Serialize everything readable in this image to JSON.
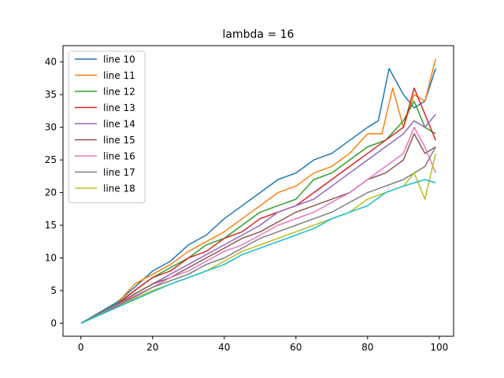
{
  "chart_data": {
    "type": "line",
    "title": "lambda = 16",
    "xlabel": "",
    "ylabel": "",
    "xlim": [
      -5,
      104
    ],
    "ylim": [
      -2,
      42.5
    ],
    "xticks": [
      0,
      20,
      40,
      60,
      80,
      100
    ],
    "yticks": [
      0,
      5,
      10,
      15,
      20,
      25,
      30,
      35,
      40
    ],
    "grid": false,
    "legend_position": "top-left",
    "series": [
      {
        "name": "line 10",
        "color": "#1f77b4",
        "points": [
          [
            0,
            0
          ],
          [
            10,
            3.2
          ],
          [
            15,
            5.5
          ],
          [
            20,
            8
          ],
          [
            25,
            9.5
          ],
          [
            30,
            12
          ],
          [
            35,
            13.5
          ],
          [
            40,
            16
          ],
          [
            45,
            18
          ],
          [
            50,
            20
          ],
          [
            55,
            22
          ],
          [
            60,
            23
          ],
          [
            65,
            25
          ],
          [
            70,
            26
          ],
          [
            75,
            28
          ],
          [
            80,
            30
          ],
          [
            83,
            31
          ],
          [
            86,
            39
          ],
          [
            90,
            35
          ],
          [
            93,
            33
          ],
          [
            96,
            34
          ],
          [
            99,
            39
          ]
        ]
      },
      {
        "name": "line 11",
        "color": "#ff7f0e",
        "points": [
          [
            0,
            0
          ],
          [
            10,
            3
          ],
          [
            15,
            6
          ],
          [
            20,
            7.5
          ],
          [
            25,
            9
          ],
          [
            30,
            11
          ],
          [
            35,
            12.5
          ],
          [
            40,
            14
          ],
          [
            45,
            16
          ],
          [
            50,
            18
          ],
          [
            55,
            20
          ],
          [
            60,
            21
          ],
          [
            65,
            23
          ],
          [
            70,
            24
          ],
          [
            75,
            26
          ],
          [
            80,
            29
          ],
          [
            84,
            29
          ],
          [
            87,
            36
          ],
          [
            90,
            30
          ],
          [
            93,
            35
          ],
          [
            96,
            34
          ],
          [
            99,
            40.5
          ]
        ]
      },
      {
        "name": "line 12",
        "color": "#2ca02c",
        "points": [
          [
            0,
            0
          ],
          [
            10,
            3
          ],
          [
            15,
            5
          ],
          [
            20,
            7
          ],
          [
            25,
            8.5
          ],
          [
            30,
            10
          ],
          [
            35,
            12
          ],
          [
            40,
            13
          ],
          [
            45,
            15
          ],
          [
            50,
            17
          ],
          [
            55,
            18
          ],
          [
            60,
            19
          ],
          [
            65,
            22
          ],
          [
            70,
            23
          ],
          [
            75,
            25
          ],
          [
            80,
            27
          ],
          [
            85,
            28
          ],
          [
            90,
            31
          ],
          [
            93,
            34
          ],
          [
            96,
            30
          ],
          [
            99,
            29
          ]
        ]
      },
      {
        "name": "line 13",
        "color": "#d62728",
        "points": [
          [
            0,
            0
          ],
          [
            10,
            2.8
          ],
          [
            15,
            5
          ],
          [
            20,
            7
          ],
          [
            25,
            8
          ],
          [
            30,
            10
          ],
          [
            35,
            11
          ],
          [
            40,
            13
          ],
          [
            45,
            14
          ],
          [
            50,
            16
          ],
          [
            55,
            17
          ],
          [
            60,
            18
          ],
          [
            65,
            20
          ],
          [
            70,
            22
          ],
          [
            75,
            24
          ],
          [
            80,
            26
          ],
          [
            85,
            28
          ],
          [
            90,
            30
          ],
          [
            93,
            36
          ],
          [
            96,
            32
          ],
          [
            99,
            28
          ]
        ]
      },
      {
        "name": "line 14",
        "color": "#9467bd",
        "points": [
          [
            0,
            0
          ],
          [
            10,
            2.8
          ],
          [
            15,
            4.5
          ],
          [
            20,
            6
          ],
          [
            25,
            7.5
          ],
          [
            30,
            9
          ],
          [
            35,
            10.5
          ],
          [
            40,
            12
          ],
          [
            45,
            13.5
          ],
          [
            50,
            15
          ],
          [
            55,
            17
          ],
          [
            60,
            18
          ],
          [
            65,
            19
          ],
          [
            70,
            21
          ],
          [
            75,
            23
          ],
          [
            80,
            25
          ],
          [
            85,
            27
          ],
          [
            90,
            29
          ],
          [
            93,
            31
          ],
          [
            96,
            30
          ],
          [
            99,
            32
          ]
        ]
      },
      {
        "name": "line 15",
        "color": "#8c564b",
        "points": [
          [
            0,
            0
          ],
          [
            10,
            2.6
          ],
          [
            15,
            4.5
          ],
          [
            20,
            6
          ],
          [
            25,
            7
          ],
          [
            30,
            8.5
          ],
          [
            35,
            10
          ],
          [
            40,
            11.5
          ],
          [
            45,
            13
          ],
          [
            50,
            14
          ],
          [
            55,
            15.5
          ],
          [
            60,
            17
          ],
          [
            65,
            18
          ],
          [
            70,
            19
          ],
          [
            75,
            20
          ],
          [
            80,
            22
          ],
          [
            85,
            23
          ],
          [
            90,
            25
          ],
          [
            93,
            29
          ],
          [
            96,
            26
          ],
          [
            99,
            27
          ]
        ]
      },
      {
        "name": "line 16",
        "color": "#e377c2",
        "points": [
          [
            0,
            0
          ],
          [
            10,
            2.6
          ],
          [
            15,
            4.2
          ],
          [
            20,
            5.5
          ],
          [
            25,
            7
          ],
          [
            30,
            8
          ],
          [
            35,
            9.5
          ],
          [
            40,
            11
          ],
          [
            45,
            12
          ],
          [
            50,
            13.5
          ],
          [
            55,
            15
          ],
          [
            60,
            16
          ],
          [
            65,
            17
          ],
          [
            70,
            18.5
          ],
          [
            75,
            20
          ],
          [
            80,
            22
          ],
          [
            85,
            24
          ],
          [
            90,
            26
          ],
          [
            93,
            30
          ],
          [
            96,
            27
          ],
          [
            99,
            23
          ]
        ]
      },
      {
        "name": "line 17",
        "color": "#7f7f7f",
        "points": [
          [
            0,
            0
          ],
          [
            10,
            2.5
          ],
          [
            15,
            4
          ],
          [
            20,
            5.5
          ],
          [
            25,
            6.5
          ],
          [
            30,
            7.5
          ],
          [
            35,
            9
          ],
          [
            40,
            10
          ],
          [
            45,
            11.5
          ],
          [
            50,
            13
          ],
          [
            55,
            14
          ],
          [
            60,
            15
          ],
          [
            65,
            16
          ],
          [
            70,
            17
          ],
          [
            75,
            18.5
          ],
          [
            80,
            20
          ],
          [
            85,
            21
          ],
          [
            90,
            22
          ],
          [
            93,
            23
          ],
          [
            96,
            24
          ],
          [
            99,
            27
          ]
        ]
      },
      {
        "name": "line 18",
        "color": "#bcbd22",
        "points": [
          [
            0,
            0
          ],
          [
            10,
            2.4
          ],
          [
            15,
            3.8
          ],
          [
            20,
            5
          ],
          [
            25,
            6
          ],
          [
            30,
            7
          ],
          [
            35,
            8
          ],
          [
            40,
            9.5
          ],
          [
            45,
            11
          ],
          [
            50,
            12
          ],
          [
            55,
            13
          ],
          [
            60,
            14
          ],
          [
            65,
            15
          ],
          [
            70,
            16
          ],
          [
            75,
            17
          ],
          [
            80,
            19
          ],
          [
            85,
            20
          ],
          [
            90,
            21
          ],
          [
            93,
            23
          ],
          [
            96,
            19
          ],
          [
            99,
            26
          ]
        ]
      },
      {
        "color": "#17becf",
        "points": [
          [
            0,
            0
          ],
          [
            10,
            2.4
          ],
          [
            15,
            3.6
          ],
          [
            20,
            4.8
          ],
          [
            25,
            6
          ],
          [
            30,
            7
          ],
          [
            35,
            8
          ],
          [
            40,
            9
          ],
          [
            45,
            10.5
          ],
          [
            50,
            11.5
          ],
          [
            55,
            12.5
          ],
          [
            60,
            13.5
          ],
          [
            65,
            14.5
          ],
          [
            70,
            16
          ],
          [
            75,
            17
          ],
          [
            80,
            18
          ],
          [
            85,
            20
          ],
          [
            90,
            21
          ],
          [
            93,
            21.5
          ],
          [
            96,
            22
          ],
          [
            99,
            21.5
          ]
        ]
      }
    ]
  }
}
